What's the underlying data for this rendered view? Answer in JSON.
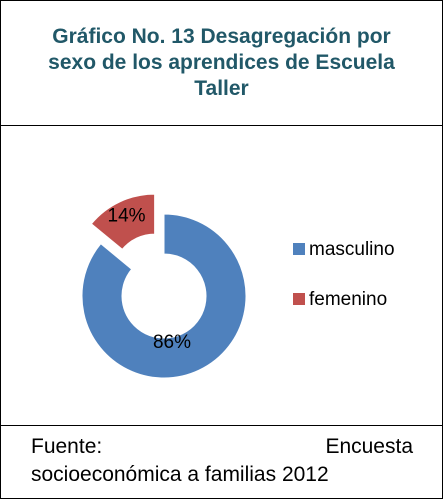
{
  "chart_data": {
    "type": "pie",
    "donut": true,
    "title": "Gráfico No. 13 Desagregación por sexo de los aprendices de Escuela Taller",
    "categories": [
      "masculino",
      "femenino"
    ],
    "values": [
      86,
      14
    ],
    "value_labels": [
      "86%",
      "14%"
    ],
    "colors": [
      "#4f81bd",
      "#c0504d"
    ],
    "legend": "right"
  },
  "footer": {
    "lines": [
      "Fuente: Encuesta",
      "socioeconómica a familias 2012"
    ]
  }
}
